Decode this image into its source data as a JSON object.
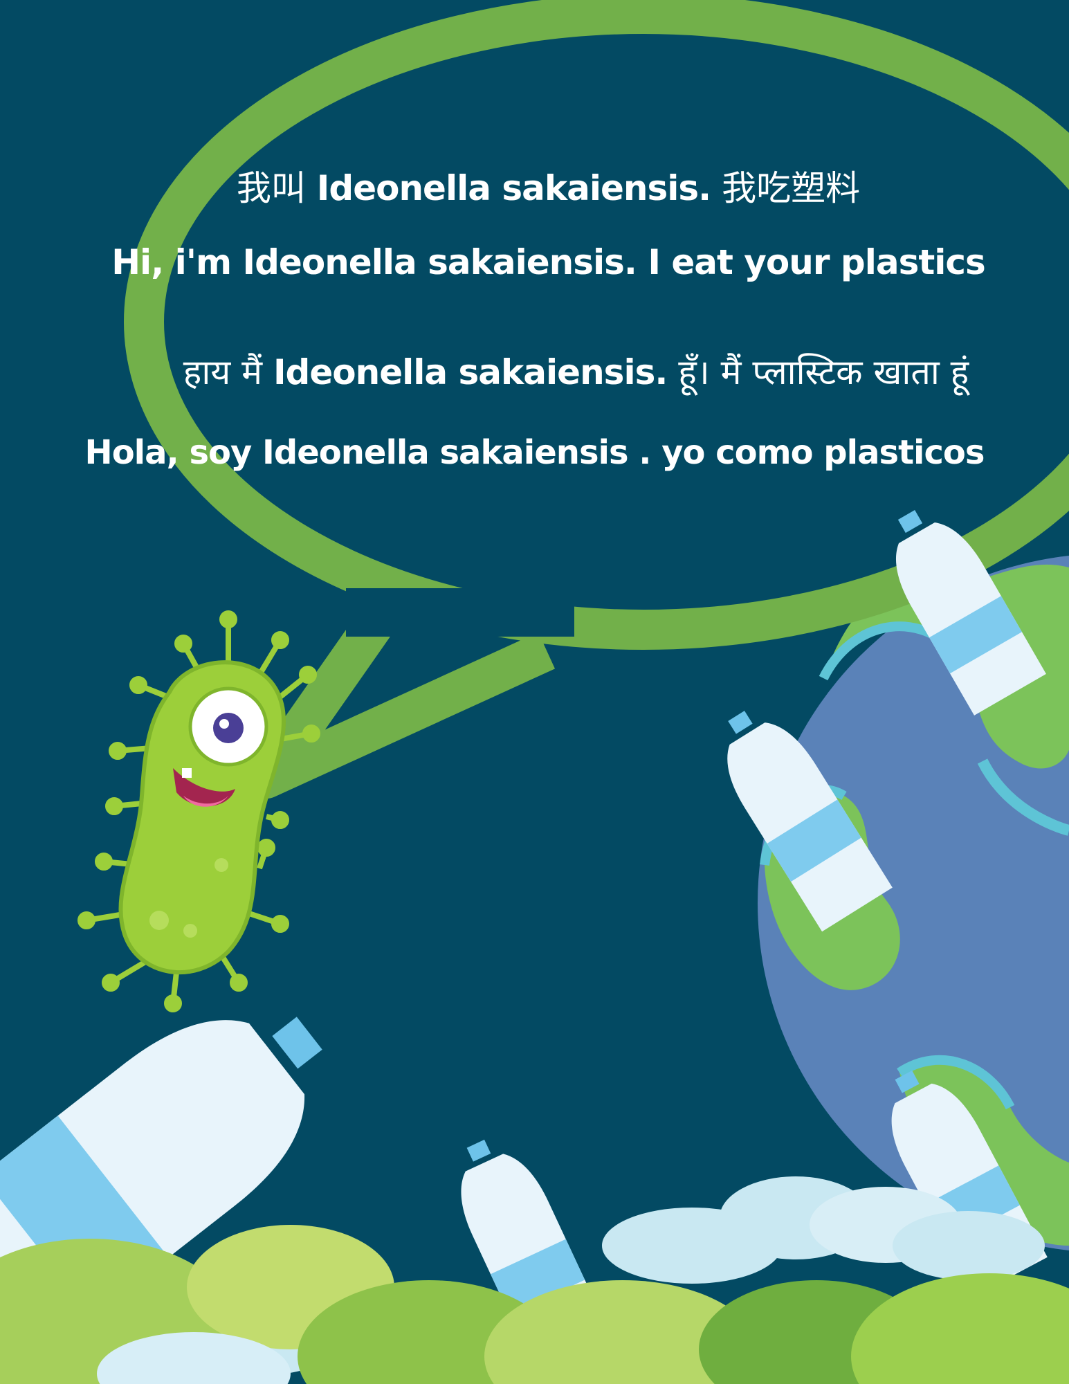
{
  "speech": {
    "line_chinese": {
      "prefix": "我叫 ",
      "name": "Ideonella sakaiensis.",
      "suffix": " 我吃塑料"
    },
    "line_english": "Hi, i'm Ideonella sakaiensis. I eat your plastics",
    "line_hindi": {
      "prefix": "हाय मैं ",
      "name": "Ideonella sakaiensis.",
      "suffix": "  हूँ। मैं प्लास्टिक खाता हूं"
    },
    "line_spanish": "Hola, soy  Ideonella sakaiensis . yo como plasticos"
  },
  "colors": {
    "background": "#034a63",
    "bubble_outline": "#72b04a",
    "bacterium": "#9ccf3a",
    "earth_ocean": "#5a82b8",
    "earth_land": "#7cc35a",
    "bottle": "#e8f4fb",
    "bottle_label": "#7fcbee",
    "cap": "#6ec3ea"
  },
  "illustration": {
    "character": "bacterium-mascot",
    "objects": [
      "speech-bubble",
      "earth-globe",
      "plastic-bottle",
      "clouds",
      "leaves"
    ]
  }
}
